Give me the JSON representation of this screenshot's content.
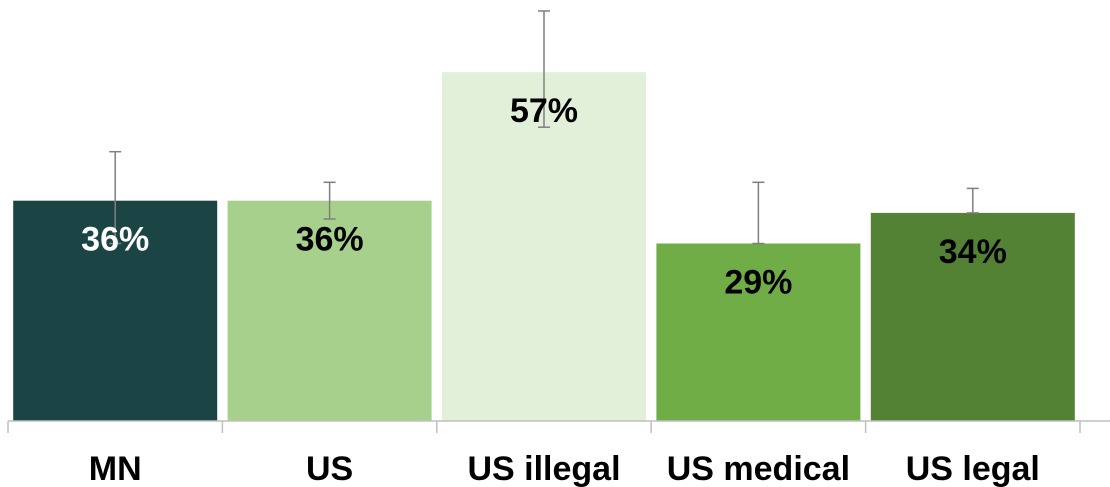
{
  "chart_data": {
    "type": "bar",
    "title": "",
    "xlabel": "",
    "ylabel": "",
    "categories": [
      "MN",
      "US",
      "US illegal",
      "US medical",
      "US legal"
    ],
    "values": [
      36,
      36,
      57,
      29,
      34
    ],
    "value_labels": [
      "36%",
      "36%",
      "57%",
      "29%",
      "34%"
    ],
    "error_bars": [
      {
        "low": 29,
        "high": 44
      },
      {
        "low": 33,
        "high": 39
      },
      {
        "low": 48,
        "high": 67
      },
      {
        "low": 29,
        "high": 39
      },
      {
        "low": 34,
        "high": 38
      }
    ],
    "ylim": [
      0,
      70
    ],
    "grid": false,
    "legend": "none",
    "bar_colors": [
      "#1b4545",
      "#a8d08d",
      "#e2efd9",
      "#70ad47",
      "#548235"
    ],
    "label_colors": [
      "#ffffff",
      "#000000",
      "#000000",
      "#000000",
      "#000000"
    ],
    "axis_color": "#bfbfbf",
    "error_bar_color": "#7f7f7f"
  }
}
